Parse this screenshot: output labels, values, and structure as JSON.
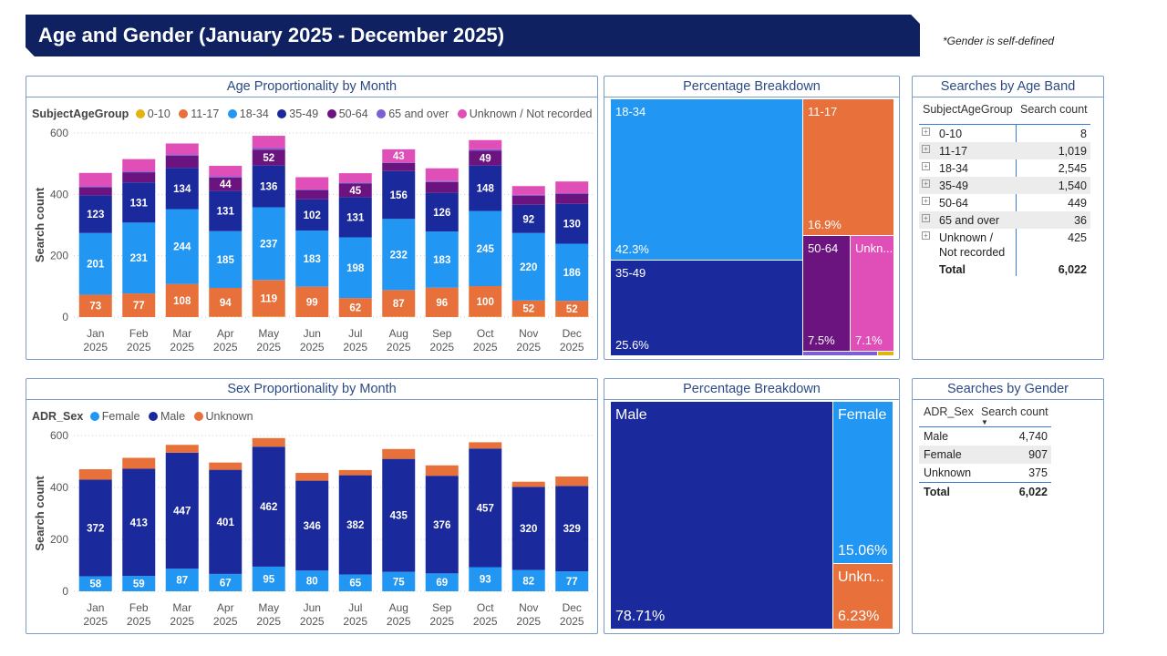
{
  "header": {
    "title": "Age and Gender (January 2025 - December 2025)",
    "note": "*Gender is self-defined"
  },
  "colors": {
    "age_0_10": "#e3b312",
    "age_11_17": "#e8703a",
    "age_18_34": "#2196f3",
    "age_35_49": "#1a2a9c",
    "age_50_64": "#6b1480",
    "age_65_over": "#7c5fd6",
    "age_unknown": "#e04fb7",
    "female": "#2196f3",
    "male": "#1a2a9c",
    "unknown": "#e8703a"
  },
  "age_chart": {
    "panel_title": "Age Proportionality by Month",
    "legend_title": "SubjectAgeGroup",
    "legend": [
      "0-10",
      "11-17",
      "18-34",
      "35-49",
      "50-64",
      "65 and over",
      "Unknown / Not recorded"
    ],
    "ylabel": "Search count",
    "yticks": [
      "0",
      "200",
      "400",
      "600"
    ],
    "months": [
      "Jan",
      "Feb",
      "Mar",
      "Apr",
      "May",
      "Jun",
      "Jul",
      "Aug",
      "Sep",
      "Oct",
      "Nov",
      "Dec"
    ],
    "year": "2025"
  },
  "sex_chart": {
    "panel_title": "Sex Proportionality by Month",
    "legend_title": "ADR_Sex",
    "legend": [
      "Female",
      "Male",
      "Unknown"
    ],
    "ylabel": "Search count",
    "yticks": [
      "0",
      "200",
      "400",
      "600"
    ]
  },
  "chart_data": [
    {
      "type": "bar",
      "stacked": true,
      "title": "Age Proportionality by Month",
      "ylabel": "Search count",
      "ylim": [
        0,
        600
      ],
      "categories": [
        "Jan 2025",
        "Feb 2025",
        "Mar 2025",
        "Apr 2025",
        "May 2025",
        "Jun 2025",
        "Jul 2025",
        "Aug 2025",
        "Sep 2025",
        "Oct 2025",
        "Nov 2025",
        "Dec 2025"
      ],
      "series": [
        {
          "name": "0-10",
          "values": [
            0,
            0,
            0,
            1,
            2,
            0,
            0,
            1,
            0,
            1,
            2,
            1
          ]
        },
        {
          "name": "11-17",
          "values": [
            73,
            77,
            108,
            94,
            119,
            99,
            62,
            87,
            96,
            100,
            52,
            52
          ]
        },
        {
          "name": "18-34",
          "values": [
            201,
            231,
            244,
            185,
            237,
            183,
            198,
            232,
            183,
            245,
            220,
            186
          ]
        },
        {
          "name": "35-49",
          "values": [
            123,
            131,
            134,
            131,
            136,
            102,
            131,
            156,
            126,
            148,
            92,
            130
          ]
        },
        {
          "name": "50-64",
          "values": [
            26,
            33,
            40,
            44,
            52,
            30,
            45,
            26,
            35,
            49,
            30,
            33
          ]
        },
        {
          "name": "65 and over",
          "values": [
            3,
            3,
            4,
            4,
            5,
            2,
            3,
            2,
            3,
            4,
            3,
            2
          ]
        },
        {
          "name": "Unknown / Not recorded",
          "values": [
            44,
            40,
            36,
            34,
            40,
            40,
            30,
            43,
            42,
            30,
            28,
            38
          ]
        }
      ],
      "labeled_series": [
        "11-17",
        "18-34",
        "35-49"
      ],
      "labeled_points": {
        "50-64": [
          4,
          6,
          9,
          3
        ],
        "Unknown / Not recorded": [
          7
        ]
      }
    },
    {
      "type": "table",
      "title": "Percentage Breakdown",
      "cells": [
        {
          "label": "18-34",
          "pct": "42.3%"
        },
        {
          "label": "11-17",
          "pct": "16.9%"
        },
        {
          "label": "35-49",
          "pct": "25.6%"
        },
        {
          "label": "50-64",
          "pct": "7.5%"
        },
        {
          "label": "Unkn...",
          "pct": "7.1%"
        }
      ]
    },
    {
      "type": "table",
      "title": "Searches by Age Band",
      "columns": [
        "SubjectAgeGroup",
        "Search count"
      ],
      "rows": [
        {
          "label": "0-10",
          "value": "8"
        },
        {
          "label": "11-17",
          "value": "1,019"
        },
        {
          "label": "18-34",
          "value": "2,545"
        },
        {
          "label": "35-49",
          "value": "1,540"
        },
        {
          "label": "50-64",
          "value": "449"
        },
        {
          "label": "65 and over",
          "value": "36"
        },
        {
          "label": "Unknown /",
          "label2": "Not recorded",
          "value": "425"
        }
      ],
      "total": {
        "label": "Total",
        "value": "6,022"
      }
    },
    {
      "type": "bar",
      "stacked": true,
      "title": "Sex Proportionality by Month",
      "ylabel": "Search count",
      "ylim": [
        0,
        600
      ],
      "categories": [
        "Jan 2025",
        "Feb 2025",
        "Mar 2025",
        "Apr 2025",
        "May 2025",
        "Jun 2025",
        "Jul 2025",
        "Aug 2025",
        "Sep 2025",
        "Oct 2025",
        "Nov 2025",
        "Dec 2025"
      ],
      "series": [
        {
          "name": "Female",
          "values": [
            58,
            59,
            87,
            67,
            95,
            80,
            65,
            75,
            69,
            93,
            82,
            77
          ]
        },
        {
          "name": "Male",
          "values": [
            372,
            413,
            447,
            401,
            462,
            346,
            382,
            435,
            376,
            457,
            320,
            329
          ]
        },
        {
          "name": "Unknown",
          "values": [
            40,
            42,
            30,
            28,
            33,
            30,
            20,
            38,
            40,
            24,
            20,
            36
          ]
        }
      ],
      "labeled_series": [
        "Female",
        "Male"
      ]
    },
    {
      "type": "table",
      "title": "Percentage Breakdown",
      "cells": [
        {
          "label": "Male",
          "pct": "78.71%"
        },
        {
          "label": "Female",
          "pct": "15.06%"
        },
        {
          "label": "Unkn...",
          "pct": "6.23%"
        }
      ]
    },
    {
      "type": "table",
      "title": "Searches by Gender",
      "columns": [
        "ADR_Sex",
        "Search count"
      ],
      "rows": [
        {
          "label": "Male",
          "value": "4,740"
        },
        {
          "label": "Female",
          "value": "907"
        },
        {
          "label": "Unknown",
          "value": "375"
        }
      ],
      "total": {
        "label": "Total",
        "value": "6,022"
      }
    }
  ]
}
